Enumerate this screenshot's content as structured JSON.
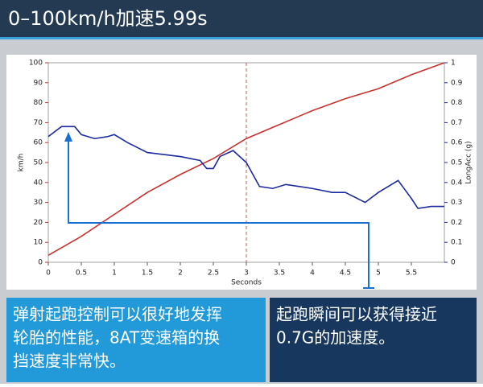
{
  "chart_data": {
    "type": "line",
    "title": "0–100km/h加速5.99s",
    "xlabel": "Seconds",
    "ylabel": "km/h",
    "y2label": "LongAcc (g)",
    "xlim": [
      0,
      6
    ],
    "xticks": [
      0,
      0.5,
      1,
      1.5,
      2,
      2.5,
      3,
      3.5,
      4,
      4.5,
      5,
      5.5
    ],
    "ylim": [
      0,
      100
    ],
    "yticks": [
      0,
      10,
      20,
      30,
      40,
      50,
      60,
      70,
      80,
      90,
      100
    ],
    "y2lim": [
      0,
      1
    ],
    "y2ticks": [
      0,
      0.1,
      0.2,
      0.3,
      0.4,
      0.5,
      0.6,
      0.7,
      0.8,
      0.9,
      1
    ],
    "series": [
      {
        "name": "km/h",
        "color": "#c8322e",
        "x": [
          0,
          0.5,
          1,
          1.5,
          2,
          2.5,
          3,
          3.5,
          4,
          4.5,
          5,
          5.5,
          6
        ],
        "values": [
          3.5,
          13,
          24,
          35,
          44,
          52,
          62,
          69,
          76,
          82,
          87,
          94,
          100
        ]
      },
      {
        "name": "LongAcc (g)",
        "color": "#1b2a9e",
        "axis": "y2",
        "x": [
          0,
          0.2,
          0.4,
          0.5,
          0.7,
          0.9,
          1,
          1.2,
          1.5,
          2,
          2.3,
          2.4,
          2.5,
          2.6,
          2.8,
          3,
          3.2,
          3.4,
          3.6,
          4,
          4.3,
          4.5,
          4.8,
          5,
          5.3,
          5.5,
          5.6,
          5.8,
          6
        ],
        "values": [
          0.63,
          0.68,
          0.68,
          0.64,
          0.62,
          0.63,
          0.64,
          0.6,
          0.55,
          0.53,
          0.51,
          0.47,
          0.47,
          0.53,
          0.56,
          0.5,
          0.38,
          0.37,
          0.39,
          0.37,
          0.35,
          0.35,
          0.3,
          0.35,
          0.41,
          0.32,
          0.27,
          0.28,
          0.28
        ]
      }
    ],
    "annotations": [
      [
        "弹射起跑控制可以很好地发挥",
        "轮胎的性能，8AT变速箱的换",
        "挡速度非常快。"
      ],
      [
        "起跑瞬间可以获得接近",
        "0.7G的加速度。"
      ]
    ]
  }
}
